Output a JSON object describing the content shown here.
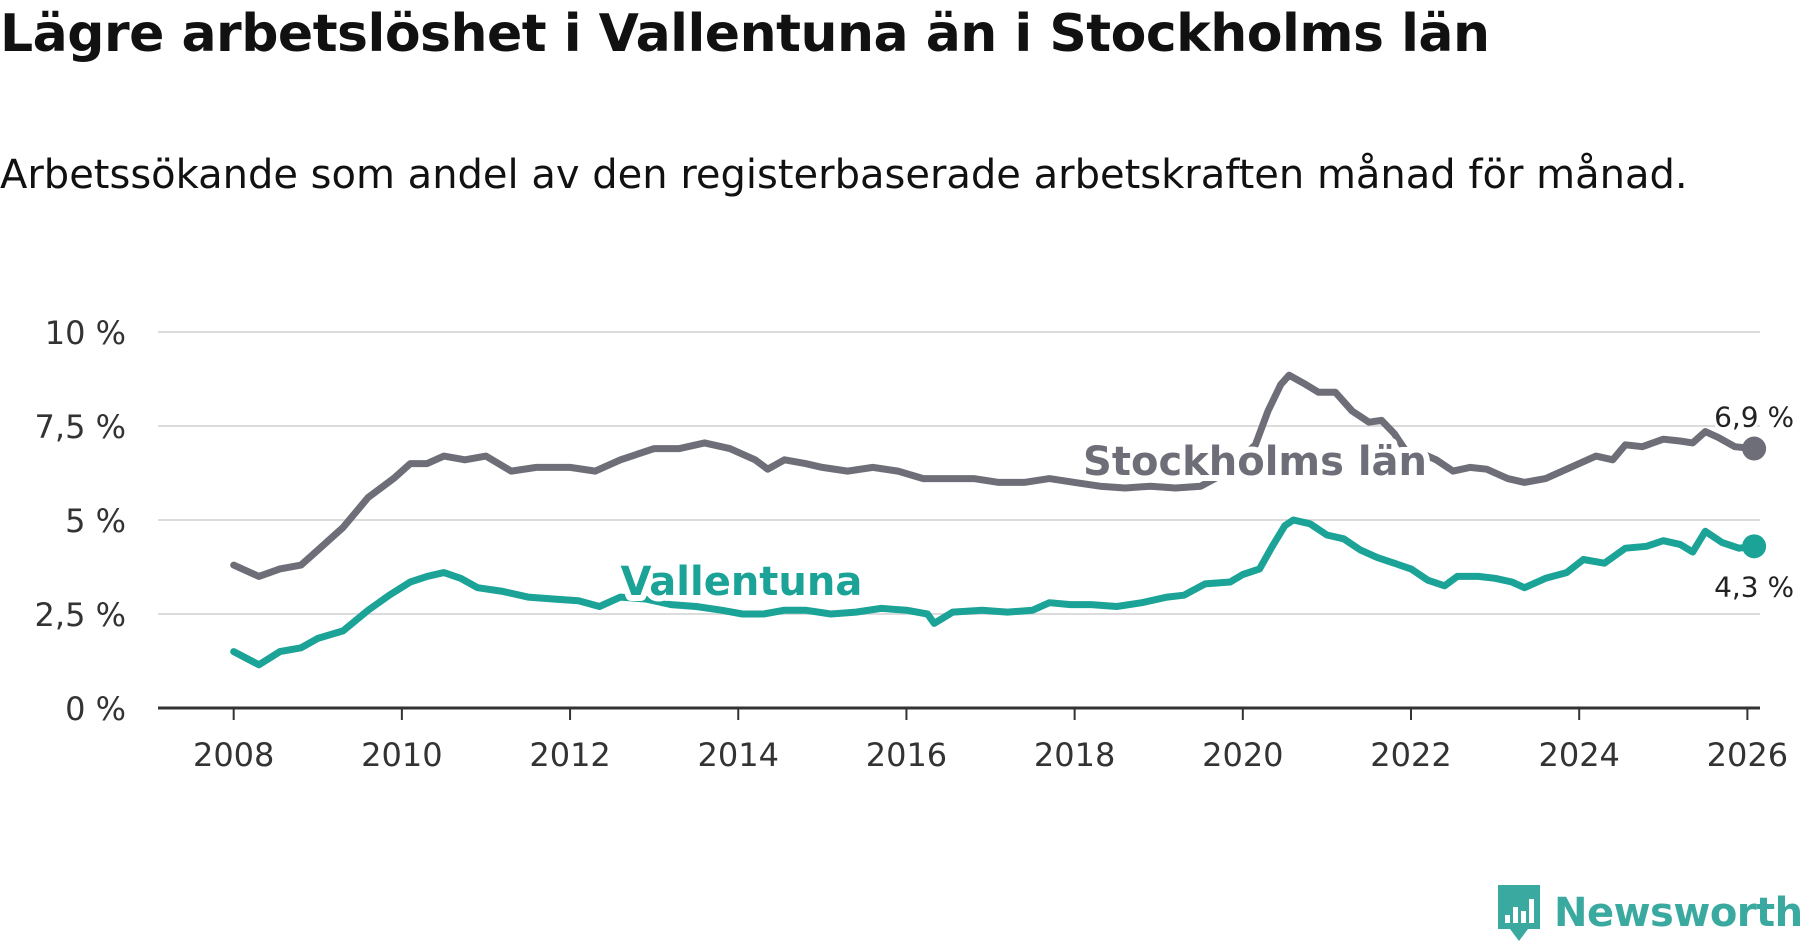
{
  "title": "Lägre arbetslöshet i Vallentuna än i Stockholms län",
  "subtitle": "Arbetssökande som andel av den registerbaserade arbetskraften månad för månad.",
  "brand": {
    "name": "Newsworthy",
    "color": "#3aa9a0",
    "icon": "newsworthy-logo-icon"
  },
  "chart_data": {
    "type": "line",
    "title": "Lägre arbetslöshet i Vallentuna än i Stockholms län",
    "xlabel": "",
    "ylabel": "",
    "xlim": [
      2007.1,
      2026.15
    ],
    "ylim": [
      0,
      10
    ],
    "y_ticks": [
      0,
      2.5,
      5,
      7.5,
      10
    ],
    "y_tick_labels": [
      "0 %",
      "2,5 %",
      "5 %",
      "7,5 %",
      "10 %"
    ],
    "x_ticks": [
      2008,
      2010,
      2012,
      2014,
      2016,
      2018,
      2020,
      2022,
      2024,
      2026
    ],
    "x_tick_labels": [
      "2008",
      "2010",
      "2012",
      "2014",
      "2016",
      "2018",
      "2020",
      "2022",
      "2024",
      "2026"
    ],
    "grid": true,
    "series": [
      {
        "name": "Stockholms län",
        "color": "#6e6e78",
        "label_x": 2018.1,
        "label_y": 6.2,
        "end_label": "6,9 %",
        "points": [
          [
            2008.0,
            3.8
          ],
          [
            2008.3,
            3.5
          ],
          [
            2008.55,
            3.7
          ],
          [
            2008.8,
            3.8
          ],
          [
            2009.0,
            4.2
          ],
          [
            2009.3,
            4.8
          ],
          [
            2009.6,
            5.6
          ],
          [
            2009.9,
            6.1
          ],
          [
            2010.1,
            6.5
          ],
          [
            2010.3,
            6.5
          ],
          [
            2010.5,
            6.7
          ],
          [
            2010.75,
            6.6
          ],
          [
            2011.0,
            6.7
          ],
          [
            2011.3,
            6.3
          ],
          [
            2011.6,
            6.4
          ],
          [
            2012.0,
            6.4
          ],
          [
            2012.3,
            6.3
          ],
          [
            2012.6,
            6.6
          ],
          [
            2013.0,
            6.9
          ],
          [
            2013.3,
            6.9
          ],
          [
            2013.6,
            7.05
          ],
          [
            2013.9,
            6.9
          ],
          [
            2014.2,
            6.6
          ],
          [
            2014.35,
            6.35
          ],
          [
            2014.55,
            6.6
          ],
          [
            2014.8,
            6.5
          ],
          [
            2015.0,
            6.4
          ],
          [
            2015.3,
            6.3
          ],
          [
            2015.6,
            6.4
          ],
          [
            2015.9,
            6.3
          ],
          [
            2016.2,
            6.1
          ],
          [
            2016.5,
            6.1
          ],
          [
            2016.8,
            6.1
          ],
          [
            2017.1,
            6.0
          ],
          [
            2017.4,
            6.0
          ],
          [
            2017.7,
            6.1
          ],
          [
            2018.0,
            6.0
          ],
          [
            2018.3,
            5.9
          ],
          [
            2018.6,
            5.85
          ],
          [
            2018.9,
            5.9
          ],
          [
            2019.2,
            5.85
          ],
          [
            2019.5,
            5.9
          ],
          [
            2019.75,
            6.2
          ],
          [
            2019.95,
            6.6
          ],
          [
            2020.15,
            7.0
          ],
          [
            2020.3,
            7.9
          ],
          [
            2020.45,
            8.6
          ],
          [
            2020.55,
            8.85
          ],
          [
            2020.75,
            8.6
          ],
          [
            2020.9,
            8.4
          ],
          [
            2021.1,
            8.4
          ],
          [
            2021.3,
            7.9
          ],
          [
            2021.5,
            7.6
          ],
          [
            2021.65,
            7.65
          ],
          [
            2021.8,
            7.3
          ],
          [
            2021.95,
            6.8
          ],
          [
            2022.15,
            6.75
          ],
          [
            2022.3,
            6.6
          ],
          [
            2022.5,
            6.3
          ],
          [
            2022.7,
            6.4
          ],
          [
            2022.9,
            6.35
          ],
          [
            2023.15,
            6.1
          ],
          [
            2023.35,
            6.0
          ],
          [
            2023.6,
            6.1
          ],
          [
            2023.8,
            6.3
          ],
          [
            2024.0,
            6.5
          ],
          [
            2024.2,
            6.7
          ],
          [
            2024.4,
            6.6
          ],
          [
            2024.55,
            7.0
          ],
          [
            2024.75,
            6.95
          ],
          [
            2025.0,
            7.15
          ],
          [
            2025.2,
            7.1
          ],
          [
            2025.35,
            7.05
          ],
          [
            2025.5,
            7.35
          ],
          [
            2025.65,
            7.2
          ],
          [
            2025.85,
            6.95
          ],
          [
            2026.08,
            6.9
          ]
        ]
      },
      {
        "name": "Vallentuna",
        "color": "#1aa396",
        "label_x": 2012.6,
        "label_y": 3.0,
        "end_label": "4,3 %",
        "points": [
          [
            2008.0,
            1.5
          ],
          [
            2008.3,
            1.15
          ],
          [
            2008.55,
            1.5
          ],
          [
            2008.8,
            1.6
          ],
          [
            2009.0,
            1.85
          ],
          [
            2009.3,
            2.05
          ],
          [
            2009.6,
            2.6
          ],
          [
            2009.85,
            3.0
          ],
          [
            2010.1,
            3.35
          ],
          [
            2010.3,
            3.5
          ],
          [
            2010.5,
            3.6
          ],
          [
            2010.7,
            3.45
          ],
          [
            2010.9,
            3.2
          ],
          [
            2011.2,
            3.1
          ],
          [
            2011.5,
            2.95
          ],
          [
            2011.8,
            2.9
          ],
          [
            2012.1,
            2.85
          ],
          [
            2012.35,
            2.7
          ],
          [
            2012.6,
            2.95
          ],
          [
            2012.9,
            2.9
          ],
          [
            2013.2,
            2.75
          ],
          [
            2013.5,
            2.7
          ],
          [
            2013.8,
            2.6
          ],
          [
            2014.05,
            2.5
          ],
          [
            2014.3,
            2.5
          ],
          [
            2014.55,
            2.6
          ],
          [
            2014.8,
            2.6
          ],
          [
            2015.1,
            2.5
          ],
          [
            2015.4,
            2.55
          ],
          [
            2015.7,
            2.65
          ],
          [
            2016.0,
            2.6
          ],
          [
            2016.25,
            2.5
          ],
          [
            2016.33,
            2.25
          ],
          [
            2016.55,
            2.55
          ],
          [
            2016.9,
            2.6
          ],
          [
            2017.2,
            2.55
          ],
          [
            2017.5,
            2.6
          ],
          [
            2017.7,
            2.8
          ],
          [
            2017.95,
            2.75
          ],
          [
            2018.2,
            2.75
          ],
          [
            2018.5,
            2.7
          ],
          [
            2018.8,
            2.8
          ],
          [
            2019.1,
            2.95
          ],
          [
            2019.3,
            3.0
          ],
          [
            2019.55,
            3.3
          ],
          [
            2019.85,
            3.35
          ],
          [
            2020.0,
            3.55
          ],
          [
            2020.2,
            3.7
          ],
          [
            2020.35,
            4.3
          ],
          [
            2020.5,
            4.85
          ],
          [
            2020.6,
            5.0
          ],
          [
            2020.8,
            4.9
          ],
          [
            2021.0,
            4.6
          ],
          [
            2021.2,
            4.5
          ],
          [
            2021.4,
            4.2
          ],
          [
            2021.6,
            4.0
          ],
          [
            2021.8,
            3.85
          ],
          [
            2022.0,
            3.7
          ],
          [
            2022.2,
            3.4
          ],
          [
            2022.4,
            3.25
          ],
          [
            2022.55,
            3.5
          ],
          [
            2022.8,
            3.5
          ],
          [
            2023.0,
            3.45
          ],
          [
            2023.2,
            3.35
          ],
          [
            2023.35,
            3.2
          ],
          [
            2023.6,
            3.45
          ],
          [
            2023.85,
            3.6
          ],
          [
            2024.05,
            3.95
          ],
          [
            2024.3,
            3.85
          ],
          [
            2024.55,
            4.25
          ],
          [
            2024.8,
            4.3
          ],
          [
            2025.0,
            4.45
          ],
          [
            2025.2,
            4.35
          ],
          [
            2025.35,
            4.15
          ],
          [
            2025.5,
            4.7
          ],
          [
            2025.7,
            4.4
          ],
          [
            2025.9,
            4.25
          ],
          [
            2026.08,
            4.3
          ]
        ]
      }
    ]
  }
}
